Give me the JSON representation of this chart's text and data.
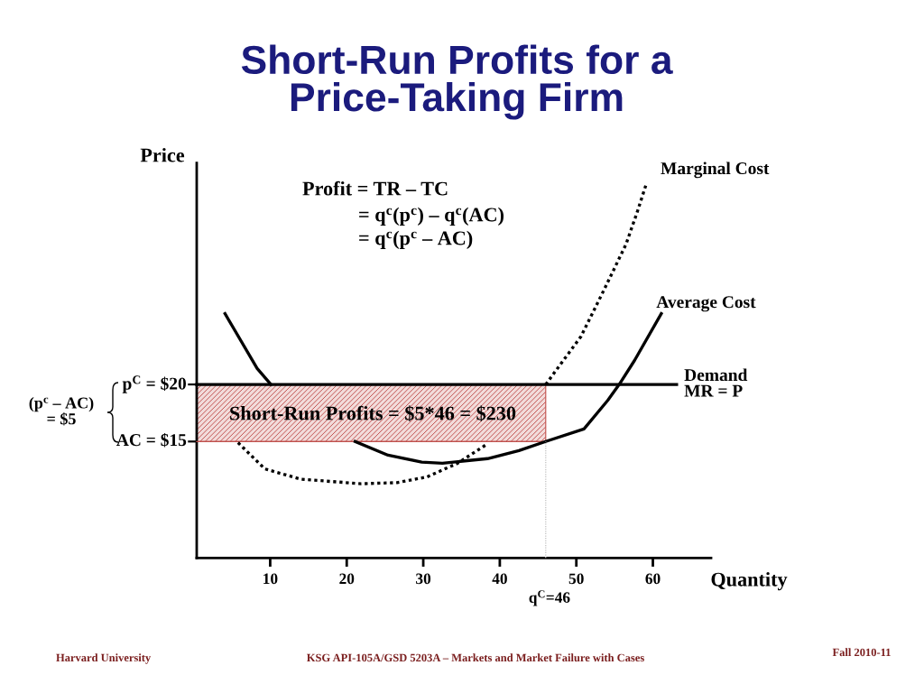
{
  "chart_data": {
    "type": "line",
    "title": "Short-Run Profits for a\nPrice-Taking Firm",
    "xlabel": "Quantity",
    "ylabel": "Price",
    "xlim": [
      0.4,
      67.6
    ],
    "ylim": [
      4.8,
      39.4
    ],
    "xticks": [
      10,
      20,
      30,
      40,
      50,
      60
    ],
    "yticks": [
      {
        "value": 15,
        "label": "AC = $15"
      },
      {
        "value": 20,
        "label": "p$^{C}$ = $20"
      }
    ],
    "series": [
      {
        "type": "line",
        "color": "#c0504d",
        "line_style": "solid",
        "x": [
          0.4,
          46
        ],
        "values": [
          15,
          15
        ],
        "lower": [
          15,
          15
        ],
        "upper": [
          20,
          20
        ]
      },
      {
        "name": "Marginal Cost",
        "color": "#000000",
        "line_style": "dotted",
        "x": [
          5.8,
          9.3,
          14.0,
          21.9,
          26.6,
          30.5,
          34.5,
          38.4,
          42,
          46,
          50.6,
          53.7,
          56.5,
          58.0,
          59.2
        ],
        "values": [
          14.9,
          12.6,
          11.7,
          11.3,
          11.4,
          11.9,
          13.1,
          14.8,
          null,
          20,
          24.2,
          28.4,
          32.3,
          35.2,
          37.7
        ]
      },
      {
        "name": "Average Cost",
        "color": "#000000",
        "line_style": "solid",
        "x": [
          4.1,
          8.3,
          10.1,
          15,
          21.1,
          25.4,
          29.8,
          32.5,
          38.4,
          42.5,
          46,
          51.0,
          54.1,
          55.6,
          57.6,
          61.1
        ],
        "values": [
          26.2,
          21.4,
          20,
          null,
          15,
          13.8,
          13.2,
          13.1,
          13.5,
          14.2,
          15,
          16.1,
          18.6,
          20.0,
          22.1,
          26.2
        ]
      },
      {
        "name": "Demand\nMR = P",
        "color": "#000000",
        "line_style": "solid",
        "x": [
          0.4,
          63.1
        ],
        "values": [
          20,
          20
        ]
      },
      {
        "color": "#c0c0c0",
        "line_style": "dotted",
        "x": [
          46,
          46
        ],
        "values": [
          4.8,
          15
        ]
      }
    ],
    "annotations": [
      "Profit = TR – TC",
      "= q$^{c}$(p$^{c}$) – q$^{c}$(AC)",
      "= q$^{c}$(p$^{c}$ – AC)",
      "(p$^{c}$ – AC)\n= $5",
      "Short-Run Profits = $5*46 = $230",
      "q$^{C}$=46",
      "Harvard University",
      "KSG API-105A/GSD 5203A – Markets and Market Failure with Cases",
      "Fall 2010-11"
    ]
  }
}
